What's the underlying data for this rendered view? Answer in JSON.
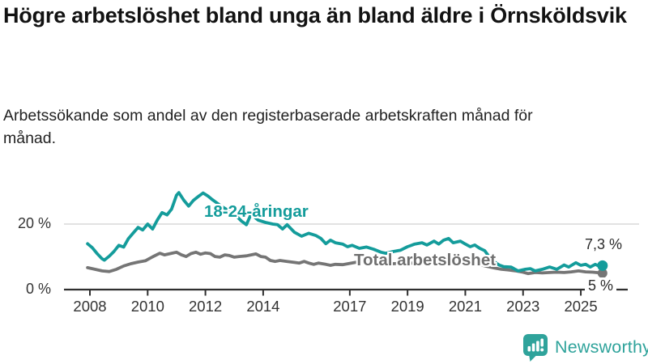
{
  "header": {
    "title": "Högre arbetslöshet bland unga än bland äldre i Örnsköldsvik",
    "subtitle": "Arbetssökande som andel av den registerbaserade arbetskraften månad för månad."
  },
  "chart_data": {
    "type": "line",
    "title": "Högre arbetslöshet bland unga än bland äldre i Örnsköldsvik",
    "subtitle": "Arbetssökande som andel av den registerbaserade arbetskraften månad för månad.",
    "unit": "%",
    "x_range": [
      2007.9,
      2026.2
    ],
    "ylim": [
      0,
      31
    ],
    "x_ticks": [
      2008,
      2010,
      2012,
      2014,
      2017,
      2019,
      2021,
      2023,
      2025
    ],
    "y_ticks": [
      {
        "value": 20,
        "label": "20 %"
      },
      {
        "value": 0,
        "label": "0 %"
      }
    ],
    "grid": "single horizontal gridline at 20 %",
    "legend_position": "inline labels on lines",
    "series": [
      {
        "id": "youth",
        "name": "18-24-åringar",
        "color": "#149c9b",
        "end_value": 7.3,
        "end_label": "7,3 %",
        "points": [
          [
            2007.92,
            14.0
          ],
          [
            2008.08,
            12.8
          ],
          [
            2008.25,
            11.0
          ],
          [
            2008.42,
            9.4
          ],
          [
            2008.5,
            9.0
          ],
          [
            2008.67,
            10.2
          ],
          [
            2008.83,
            11.6
          ],
          [
            2009.0,
            13.5
          ],
          [
            2009.17,
            13.0
          ],
          [
            2009.33,
            15.5
          ],
          [
            2009.5,
            17.3
          ],
          [
            2009.67,
            19.0
          ],
          [
            2009.83,
            18.2
          ],
          [
            2010.0,
            20.0
          ],
          [
            2010.17,
            18.5
          ],
          [
            2010.33,
            21.2
          ],
          [
            2010.5,
            23.5
          ],
          [
            2010.67,
            22.8
          ],
          [
            2010.83,
            24.6
          ],
          [
            2011.0,
            28.8
          ],
          [
            2011.08,
            29.6
          ],
          [
            2011.25,
            27.3
          ],
          [
            2011.42,
            25.5
          ],
          [
            2011.58,
            27.2
          ],
          [
            2011.75,
            28.4
          ],
          [
            2011.92,
            29.5
          ],
          [
            2012.08,
            28.6
          ],
          [
            2012.25,
            27.4
          ],
          [
            2012.42,
            26.3
          ],
          [
            2012.58,
            25.3
          ],
          [
            2012.75,
            24.4
          ],
          [
            2012.92,
            23.4
          ],
          [
            2013.08,
            22.4
          ],
          [
            2013.25,
            20.9
          ],
          [
            2013.42,
            19.8
          ],
          [
            2013.58,
            23.0
          ],
          [
            2013.83,
            21.2
          ],
          [
            2014.08,
            20.5
          ],
          [
            2014.33,
            20.0
          ],
          [
            2014.5,
            19.8
          ],
          [
            2014.67,
            18.5
          ],
          [
            2014.83,
            19.8
          ],
          [
            2015.08,
            17.5
          ],
          [
            2015.33,
            16.3
          ],
          [
            2015.58,
            17.2
          ],
          [
            2015.83,
            16.5
          ],
          [
            2016.0,
            15.6
          ],
          [
            2016.17,
            14.0
          ],
          [
            2016.33,
            15.1
          ],
          [
            2016.5,
            14.3
          ],
          [
            2016.75,
            13.9
          ],
          [
            2016.92,
            13.1
          ],
          [
            2017.08,
            13.5
          ],
          [
            2017.33,
            12.6
          ],
          [
            2017.58,
            13.0
          ],
          [
            2017.83,
            12.3
          ],
          [
            2018.08,
            11.4
          ],
          [
            2018.25,
            11.1
          ],
          [
            2018.5,
            11.6
          ],
          [
            2018.75,
            12.0
          ],
          [
            2019.0,
            13.1
          ],
          [
            2019.25,
            13.9
          ],
          [
            2019.5,
            14.3
          ],
          [
            2019.67,
            13.6
          ],
          [
            2019.92,
            14.8
          ],
          [
            2020.08,
            13.9
          ],
          [
            2020.25,
            15.1
          ],
          [
            2020.42,
            15.6
          ],
          [
            2020.58,
            14.3
          ],
          [
            2020.83,
            14.8
          ],
          [
            2021.0,
            13.9
          ],
          [
            2021.17,
            13.1
          ],
          [
            2021.33,
            13.6
          ],
          [
            2021.5,
            12.6
          ],
          [
            2021.67,
            11.9
          ],
          [
            2021.83,
            10.0
          ],
          [
            2022.0,
            8.5
          ],
          [
            2022.17,
            7.5
          ],
          [
            2022.33,
            7.0
          ],
          [
            2022.58,
            6.9
          ],
          [
            2022.83,
            5.7
          ],
          [
            2023.08,
            6.2
          ],
          [
            2023.25,
            6.4
          ],
          [
            2023.42,
            5.7
          ],
          [
            2023.67,
            6.2
          ],
          [
            2023.92,
            6.9
          ],
          [
            2024.17,
            6.2
          ],
          [
            2024.42,
            7.5
          ],
          [
            2024.58,
            6.9
          ],
          [
            2024.83,
            8.2
          ],
          [
            2025.0,
            7.4
          ],
          [
            2025.17,
            7.7
          ],
          [
            2025.33,
            6.9
          ],
          [
            2025.5,
            7.7
          ],
          [
            2025.67,
            7.0
          ],
          [
            2025.75,
            7.3
          ]
        ]
      },
      {
        "id": "total",
        "name": "Total arbetslöshet",
        "color": "#757575",
        "end_value": 5.0,
        "end_label": "5 %",
        "points": [
          [
            2007.92,
            6.7
          ],
          [
            2008.17,
            6.2
          ],
          [
            2008.42,
            5.7
          ],
          [
            2008.67,
            5.5
          ],
          [
            2008.92,
            6.2
          ],
          [
            2009.17,
            7.2
          ],
          [
            2009.42,
            7.9
          ],
          [
            2009.67,
            8.4
          ],
          [
            2009.92,
            8.8
          ],
          [
            2010.17,
            10.0
          ],
          [
            2010.42,
            11.1
          ],
          [
            2010.58,
            10.6
          ],
          [
            2010.83,
            11.1
          ],
          [
            2011.0,
            11.4
          ],
          [
            2011.17,
            10.6
          ],
          [
            2011.33,
            10.1
          ],
          [
            2011.5,
            11.0
          ],
          [
            2011.67,
            11.4
          ],
          [
            2011.83,
            10.8
          ],
          [
            2012.0,
            11.2
          ],
          [
            2012.17,
            11.0
          ],
          [
            2012.33,
            10.1
          ],
          [
            2012.5,
            9.9
          ],
          [
            2012.67,
            10.6
          ],
          [
            2012.83,
            10.4
          ],
          [
            2013.0,
            9.9
          ],
          [
            2013.17,
            10.1
          ],
          [
            2013.42,
            10.3
          ],
          [
            2013.58,
            10.6
          ],
          [
            2013.75,
            10.9
          ],
          [
            2013.92,
            10.1
          ],
          [
            2014.08,
            9.9
          ],
          [
            2014.25,
            8.9
          ],
          [
            2014.42,
            8.6
          ],
          [
            2014.58,
            8.9
          ],
          [
            2014.83,
            8.6
          ],
          [
            2015.08,
            8.3
          ],
          [
            2015.25,
            8.1
          ],
          [
            2015.42,
            8.6
          ],
          [
            2015.58,
            8.1
          ],
          [
            2015.75,
            7.7
          ],
          [
            2015.92,
            8.1
          ],
          [
            2016.17,
            7.7
          ],
          [
            2016.33,
            7.4
          ],
          [
            2016.5,
            7.7
          ],
          [
            2016.75,
            7.6
          ],
          [
            2017.0,
            8.0
          ],
          [
            2017.25,
            8.4
          ],
          [
            2017.5,
            8.6
          ],
          [
            2017.75,
            8.4
          ],
          [
            2018.0,
            8.2
          ],
          [
            2018.25,
            8.0
          ],
          [
            2018.5,
            7.9
          ],
          [
            2018.75,
            8.0
          ],
          [
            2019.0,
            8.2
          ],
          [
            2019.25,
            8.0
          ],
          [
            2019.5,
            7.9
          ],
          [
            2019.75,
            8.1
          ],
          [
            2020.0,
            8.4
          ],
          [
            2020.25,
            9.0
          ],
          [
            2020.5,
            9.3
          ],
          [
            2020.75,
            9.0
          ],
          [
            2021.0,
            8.6
          ],
          [
            2021.25,
            8.1
          ],
          [
            2021.5,
            7.6
          ],
          [
            2021.75,
            7.1
          ],
          [
            2022.0,
            6.6
          ],
          [
            2022.25,
            6.2
          ],
          [
            2022.5,
            6.0
          ],
          [
            2022.75,
            5.7
          ],
          [
            2023.0,
            5.3
          ],
          [
            2023.17,
            4.9
          ],
          [
            2023.42,
            5.2
          ],
          [
            2023.67,
            5.1
          ],
          [
            2023.92,
            5.2
          ],
          [
            2024.17,
            5.3
          ],
          [
            2024.42,
            5.2
          ],
          [
            2024.67,
            5.4
          ],
          [
            2024.92,
            5.7
          ],
          [
            2025.17,
            5.4
          ],
          [
            2025.42,
            5.3
          ],
          [
            2025.67,
            5.1
          ],
          [
            2025.75,
            5.0
          ]
        ]
      }
    ]
  },
  "branding": {
    "logo_text": "Newsworthy",
    "logo_icon": "bar-chart-speech-bubble-icon",
    "brand_color": "#2fa39b"
  },
  "colors": {
    "youth_line": "#149c9b",
    "total_line": "#757575",
    "axis": "#2f2f2f",
    "gridline": "#d9d9d9",
    "text": "#333333",
    "title_text": "#121212",
    "background": "#ffffff"
  }
}
